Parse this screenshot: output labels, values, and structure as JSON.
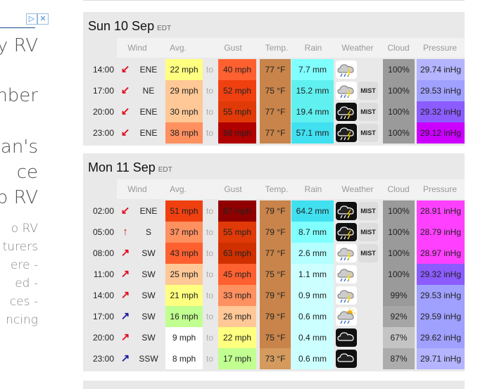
{
  "ad": {
    "lines": [
      "ay RV",
      "mber",
      "gan's",
      "ce",
      "p RV",
      "o RV",
      "turers",
      "ere -",
      "ed -",
      "ces -",
      "ncing"
    ]
  },
  "headers": {
    "wind": "Wind",
    "avg": "Avg.",
    "gust": "Gust",
    "temp": "Temp.",
    "rain": "Rain",
    "weather": "Weather",
    "cloud": "Cloud",
    "pressure": "Pressure"
  },
  "to_label": "to",
  "mist_label": "MIST",
  "days": [
    {
      "title": "Sun 10 Sep",
      "tz": "EDT",
      "rows": [
        {
          "time": "14:00",
          "dir": "ENE",
          "arrow": "↙",
          "arrow_color": "#e01020",
          "avg": "22 mph",
          "avg_bg": "#ffff80",
          "gust": "40 mph",
          "gust_bg": "#ff6030",
          "temp": "77 °F",
          "temp_bg": "#c8844a",
          "rain": "7.7 mm",
          "rain_bg": "#80ffff",
          "weather_icon": "cloud-rain-icon",
          "mist": false,
          "cloud": "100%",
          "cloud_bg": "#9a9a9a",
          "pressure": "29.74 inHg",
          "pressure_bg": "#b4b4ff"
        },
        {
          "time": "17:00",
          "dir": "NE",
          "arrow": "↙",
          "arrow_color": "#e01020",
          "avg": "29 mph",
          "avg_bg": "#ffc896",
          "gust": "52 mph",
          "gust_bg": "#f04010",
          "temp": "75 °F",
          "temp_bg": "#c8844a",
          "rain": "15.2 mm",
          "rain_bg": "#60f0f0",
          "weather_icon": "cloud-rain-icon",
          "mist": true,
          "cloud": "100%",
          "cloud_bg": "#9a9a9a",
          "pressure": "29.53 inHg",
          "pressure_bg": "#a0a0ff"
        },
        {
          "time": "20:00",
          "dir": "ENE",
          "arrow": "↙",
          "arrow_color": "#e01020",
          "avg": "30 mph",
          "avg_bg": "#ffc896",
          "gust": "55 mph",
          "gust_bg": "#e03a08",
          "temp": "77 °F",
          "temp_bg": "#c8844a",
          "rain": "19.4 mm",
          "rain_bg": "#60f0f0",
          "weather_icon": "cloud-heavy-rain-icon",
          "mist": true,
          "cloud": "100%",
          "cloud_bg": "#9a9a9a",
          "pressure": "29.32 inHg",
          "pressure_bg": "#8c5cff"
        },
        {
          "time": "23:00",
          "dir": "ENE",
          "arrow": "↙",
          "arrow_color": "#e01020",
          "avg": "38 mph",
          "avg_bg": "#ff9060",
          "gust": "68 mph",
          "gust_bg": "#b00000",
          "temp": "77 °F",
          "temp_bg": "#c8844a",
          "rain": "57.1 mm",
          "rain_bg": "#40e0f0",
          "weather_icon": "cloud-heavy-rain-icon",
          "mist": true,
          "cloud": "100%",
          "cloud_bg": "#9a9a9a",
          "pressure": "29.12 inHg",
          "pressure_bg": "#cc00ff"
        }
      ]
    },
    {
      "title": "Mon 11 Sep",
      "tz": "EDT",
      "rows": [
        {
          "time": "02:00",
          "dir": "ENE",
          "arrow": "↙",
          "arrow_color": "#e01020",
          "avg": "51 mph",
          "avg_bg": "#f04010",
          "gust": "87 mph",
          "gust_bg": "#900000",
          "temp": "79 °F",
          "temp_bg": "#c8844a",
          "rain": "64.2 mm",
          "rain_bg": "#40e0f0",
          "weather_icon": "cloud-heavy-rain-icon",
          "mist": true,
          "cloud": "100%",
          "cloud_bg": "#9a9a9a",
          "pressure": "28.91 inHg",
          "pressure_bg": "#ff40ff"
        },
        {
          "time": "05:00",
          "dir": "S",
          "arrow": "↑",
          "arrow_color": "#e01020",
          "avg": "37 mph",
          "avg_bg": "#ff9060",
          "gust": "55 mph",
          "gust_bg": "#e03a08",
          "temp": "79 °F",
          "temp_bg": "#c8844a",
          "rain": "8.7 mm",
          "rain_bg": "#80ffff",
          "weather_icon": "cloud-heavy-rain-icon",
          "mist": true,
          "cloud": "100%",
          "cloud_bg": "#9a9a9a",
          "pressure": "28.79 inHg",
          "pressure_bg": "#ff40ff"
        },
        {
          "time": "08:00",
          "dir": "SW",
          "arrow": "↗",
          "arrow_color": "#e01020",
          "avg": "43 mph",
          "avg_bg": "#ff6030",
          "gust": "63 mph",
          "gust_bg": "#d03000",
          "temp": "77 °F",
          "temp_bg": "#c8844a",
          "rain": "2.6 mm",
          "rain_bg": "#b4ffff",
          "weather_icon": "cloud-rain-icon",
          "mist": true,
          "cloud": "100%",
          "cloud_bg": "#9a9a9a",
          "pressure": "28.97 inHg",
          "pressure_bg": "#ff40ff"
        },
        {
          "time": "11:00",
          "dir": "SW",
          "arrow": "↗",
          "arrow_color": "#e01020",
          "avg": "25 mph",
          "avg_bg": "#ffc896",
          "gust": "45 mph",
          "gust_bg": "#ff6030",
          "temp": "75 °F",
          "temp_bg": "#c8844a",
          "rain": "1.1 mm",
          "rain_bg": "#ccffff",
          "weather_icon": "cloud-rain-icon",
          "mist": false,
          "cloud": "100%",
          "cloud_bg": "#9a9a9a",
          "pressure": "29.32 inHg",
          "pressure_bg": "#8c5cff"
        },
        {
          "time": "14:00",
          "dir": "SW",
          "arrow": "↗",
          "arrow_color": "#e01020",
          "avg": "21 mph",
          "avg_bg": "#ffff80",
          "gust": "33 mph",
          "gust_bg": "#ff9060",
          "temp": "79 °F",
          "temp_bg": "#c8844a",
          "rain": "0.9 mm",
          "rain_bg": "#ccffff",
          "weather_icon": "cloud-rain-icon",
          "mist": false,
          "cloud": "99%",
          "cloud_bg": "#9a9a9a",
          "pressure": "29.53 inHg",
          "pressure_bg": "#a0a0ff"
        },
        {
          "time": "17:00",
          "dir": "SW",
          "arrow": "↗",
          "arrow_color": "#2020a0",
          "avg": "16 mph",
          "avg_bg": "#c0ff90",
          "gust": "26 mph",
          "gust_bg": "#ffc896",
          "temp": "79 °F",
          "temp_bg": "#c8844a",
          "rain": "0.6 mm",
          "rain_bg": "#ccffff",
          "weather_icon": "sun-cloud-rain-icon",
          "mist": false,
          "cloud": "92%",
          "cloud_bg": "#a6a6a6",
          "pressure": "29.59 inHg",
          "pressure_bg": "#a0a0ff"
        },
        {
          "time": "20:00",
          "dir": "SW",
          "arrow": "↗",
          "arrow_color": "#e01020",
          "avg": "9 mph",
          "avg_bg": "#ffffff",
          "gust": "22 mph",
          "gust_bg": "#ffff80",
          "temp": "75 °F",
          "temp_bg": "#c8844a",
          "rain": "0.4 mm",
          "rain_bg": "#ccffff",
          "weather_icon": "cloud-night-icon",
          "mist": false,
          "cloud": "67%",
          "cloud_bg": "#c4c4c4",
          "pressure": "29.62 inHg",
          "pressure_bg": "#a0a0ff"
        },
        {
          "time": "23:00",
          "dir": "SSW",
          "arrow": "↗",
          "arrow_color": "#2020a0",
          "avg": "8 mph",
          "avg_bg": "#ffffff",
          "gust": "17 mph",
          "gust_bg": "#c0ff90",
          "temp": "73 °F",
          "temp_bg": "#d49a5e",
          "rain": "0.6 mm",
          "rain_bg": "#ccffff",
          "weather_icon": "cloud-night-icon",
          "mist": false,
          "cloud": "87%",
          "cloud_bg": "#acacac",
          "pressure": "29.71 inHg",
          "pressure_bg": "#b4b4ff"
        }
      ]
    }
  ]
}
